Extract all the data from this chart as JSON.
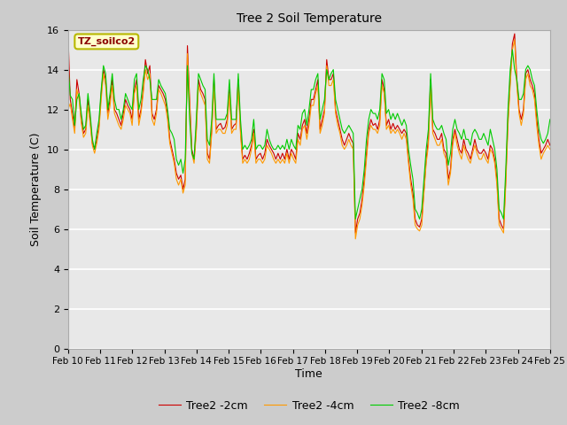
{
  "title": "Tree 2 Soil Temperature",
  "xlabel": "Time",
  "ylabel": "Soil Temperature (C)",
  "annotation": "TZ_soilco2",
  "ylim": [
    0,
    16
  ],
  "yticks": [
    0,
    2,
    4,
    6,
    8,
    10,
    12,
    14,
    16
  ],
  "x_labels": [
    "Feb 10",
    "Feb 11",
    "Feb 12",
    "Feb 13",
    "Feb 14",
    "Feb 15",
    "Feb 16",
    "Feb 17",
    "Feb 18",
    "Feb 19",
    "Feb 20",
    "Feb 21",
    "Feb 22",
    "Feb 23",
    "Feb 24",
    "Feb 25"
  ],
  "legend": [
    "Tree2 -2cm",
    "Tree2 -4cm",
    "Tree2 -8cm"
  ],
  "colors": [
    "#cc0000",
    "#ff9900",
    "#00cc00"
  ],
  "fig_bg": "#dddddd",
  "plot_bg": "#e8e8e8",
  "tree2_2cm": [
    15.8,
    12.5,
    11.8,
    11.0,
    13.5,
    12.8,
    11.5,
    10.8,
    11.0,
    12.5,
    11.5,
    10.3,
    10.0,
    10.5,
    11.2,
    12.8,
    14.0,
    13.5,
    11.8,
    12.5,
    13.5,
    12.0,
    11.8,
    11.5,
    11.2,
    11.8,
    12.5,
    12.2,
    12.0,
    11.5,
    13.0,
    13.5,
    11.5,
    12.0,
    13.0,
    14.5,
    13.8,
    14.2,
    11.8,
    11.5,
    12.0,
    13.2,
    13.0,
    12.8,
    12.5,
    11.8,
    10.5,
    10.0,
    9.5,
    8.8,
    8.5,
    8.7,
    8.0,
    8.5,
    15.2,
    12.5,
    10.0,
    9.5,
    11.0,
    13.5,
    13.0,
    12.8,
    12.5,
    9.8,
    9.5,
    11.0,
    13.5,
    11.0,
    11.2,
    11.3,
    11.0,
    11.1,
    11.5,
    13.0,
    11.0,
    11.2,
    11.3,
    13.5,
    11.0,
    9.5,
    9.7,
    9.5,
    9.8,
    10.2,
    11.0,
    9.5,
    9.7,
    9.8,
    9.5,
    9.8,
    10.5,
    10.2,
    10.0,
    9.8,
    9.5,
    9.8,
    9.5,
    9.8,
    9.5,
    10.0,
    9.5,
    10.0,
    9.8,
    9.5,
    10.8,
    10.5,
    11.2,
    11.5,
    10.8,
    11.5,
    12.5,
    12.5,
    13.0,
    13.5,
    11.0,
    11.5,
    12.0,
    14.5,
    13.5,
    13.5,
    13.8,
    12.0,
    11.5,
    11.0,
    10.5,
    10.2,
    10.5,
    10.8,
    10.5,
    10.3,
    5.8,
    6.5,
    6.8,
    7.5,
    8.5,
    9.8,
    11.0,
    11.5,
    11.2,
    11.3,
    11.0,
    11.5,
    13.5,
    13.0,
    11.2,
    11.5,
    11.0,
    11.3,
    11.0,
    11.2,
    11.0,
    10.8,
    11.0,
    10.8,
    9.5,
    8.5,
    7.8,
    6.5,
    6.2,
    6.1,
    6.5,
    8.0,
    9.5,
    10.5,
    13.5,
    11.0,
    10.8,
    10.5,
    10.5,
    10.8,
    10.0,
    9.8,
    8.5,
    9.0,
    10.5,
    11.0,
    10.5,
    10.0,
    9.8,
    10.5,
    10.0,
    9.8,
    9.5,
    10.0,
    10.5,
    10.0,
    9.8,
    9.8,
    10.0,
    9.8,
    9.5,
    10.2,
    10.0,
    9.5,
    8.5,
    6.5,
    6.2,
    6.0,
    8.5,
    11.5,
    13.5,
    15.3,
    15.8,
    13.5,
    12.0,
    11.5,
    12.0,
    13.8,
    14.0,
    13.5,
    13.2,
    12.8,
    11.5,
    10.5,
    9.8,
    10.0,
    10.2,
    10.5,
    10.2
  ],
  "tree2_4cm": [
    12.0,
    12.3,
    11.5,
    10.8,
    13.0,
    12.5,
    11.3,
    10.6,
    10.8,
    12.2,
    11.3,
    10.2,
    9.8,
    10.3,
    11.0,
    12.5,
    13.8,
    13.2,
    11.5,
    12.2,
    13.2,
    11.8,
    11.5,
    11.2,
    11.0,
    11.5,
    12.2,
    12.0,
    11.8,
    11.2,
    12.8,
    13.2,
    11.2,
    11.8,
    12.8,
    14.0,
    13.5,
    13.8,
    11.5,
    11.2,
    11.8,
    13.0,
    12.8,
    12.5,
    12.2,
    11.5,
    10.3,
    9.8,
    9.3,
    8.5,
    8.2,
    8.5,
    7.8,
    8.2,
    14.8,
    12.2,
    9.8,
    9.3,
    10.8,
    13.2,
    12.8,
    12.5,
    12.2,
    9.5,
    9.3,
    10.8,
    13.2,
    10.8,
    11.0,
    11.0,
    10.8,
    10.8,
    11.2,
    12.8,
    10.8,
    11.0,
    11.0,
    13.2,
    10.8,
    9.3,
    9.5,
    9.3,
    9.5,
    10.0,
    10.8,
    9.3,
    9.5,
    9.5,
    9.3,
    9.5,
    10.2,
    10.0,
    9.8,
    9.5,
    9.3,
    9.5,
    9.3,
    9.5,
    9.3,
    9.8,
    9.3,
    9.8,
    9.5,
    9.3,
    10.5,
    10.2,
    11.0,
    11.2,
    10.5,
    11.2,
    12.2,
    12.2,
    12.8,
    13.2,
    10.8,
    11.2,
    11.8,
    14.2,
    13.2,
    13.2,
    13.5,
    11.8,
    11.2,
    10.8,
    10.2,
    10.0,
    10.2,
    10.5,
    10.2,
    10.0,
    5.5,
    6.2,
    6.5,
    7.2,
    8.2,
    9.5,
    10.8,
    11.2,
    11.0,
    11.0,
    10.8,
    11.2,
    13.2,
    12.8,
    11.0,
    11.2,
    10.8,
    11.0,
    10.8,
    11.0,
    10.8,
    10.5,
    10.8,
    10.5,
    9.3,
    8.2,
    7.5,
    6.2,
    6.0,
    5.9,
    6.2,
    7.8,
    9.3,
    10.2,
    13.2,
    10.8,
    10.5,
    10.2,
    10.2,
    10.5,
    9.8,
    9.5,
    8.2,
    8.8,
    10.2,
    10.8,
    10.2,
    9.8,
    9.5,
    10.2,
    9.8,
    9.5,
    9.3,
    9.8,
    10.2,
    9.8,
    9.5,
    9.5,
    9.8,
    9.5,
    9.3,
    10.0,
    9.8,
    9.3,
    8.2,
    6.2,
    6.0,
    5.8,
    8.2,
    11.2,
    13.2,
    15.0,
    15.5,
    13.2,
    11.8,
    11.2,
    11.8,
    13.5,
    13.8,
    13.2,
    13.0,
    12.5,
    11.2,
    10.2,
    9.5,
    9.8,
    10.0,
    10.2,
    10.0
  ],
  "tree2_8cm": [
    14.2,
    12.7,
    12.5,
    11.2,
    12.5,
    12.8,
    11.8,
    11.0,
    11.2,
    12.8,
    11.8,
    10.5,
    10.0,
    10.8,
    11.5,
    13.0,
    14.2,
    13.8,
    12.0,
    12.8,
    13.8,
    12.5,
    12.0,
    12.0,
    11.5,
    12.0,
    12.8,
    12.5,
    12.2,
    12.0,
    13.5,
    13.8,
    12.0,
    12.5,
    13.5,
    14.2,
    14.0,
    13.5,
    12.5,
    12.5,
    12.5,
    13.5,
    13.2,
    13.0,
    12.8,
    12.0,
    11.0,
    10.8,
    10.5,
    9.5,
    9.2,
    9.5,
    8.8,
    9.5,
    14.2,
    11.5,
    9.8,
    9.5,
    11.5,
    13.8,
    13.5,
    13.2,
    13.0,
    10.5,
    10.2,
    11.5,
    13.8,
    11.5,
    11.5,
    11.5,
    11.5,
    11.5,
    11.8,
    13.5,
    11.5,
    11.5,
    11.5,
    13.8,
    11.5,
    10.0,
    10.2,
    10.0,
    10.2,
    10.5,
    11.5,
    10.0,
    10.2,
    10.2,
    10.0,
    10.2,
    11.0,
    10.5,
    10.2,
    10.0,
    10.0,
    10.2,
    10.0,
    10.2,
    10.0,
    10.5,
    10.0,
    10.5,
    10.2,
    10.0,
    11.2,
    11.0,
    11.8,
    12.0,
    11.2,
    12.0,
    13.0,
    13.0,
    13.5,
    13.8,
    11.5,
    12.0,
    12.5,
    14.0,
    13.5,
    13.8,
    14.0,
    12.5,
    12.0,
    11.5,
    11.0,
    10.8,
    11.0,
    11.2,
    11.0,
    10.8,
    6.5,
    7.0,
    7.5,
    8.0,
    9.0,
    10.5,
    11.5,
    12.0,
    11.8,
    11.8,
    11.5,
    12.0,
    13.8,
    13.5,
    11.8,
    12.0,
    11.5,
    11.8,
    11.5,
    11.8,
    11.5,
    11.2,
    11.5,
    11.2,
    10.0,
    9.2,
    8.5,
    7.0,
    6.8,
    6.5,
    7.0,
    8.5,
    10.0,
    11.0,
    13.8,
    11.5,
    11.2,
    11.0,
    11.0,
    11.2,
    10.8,
    10.5,
    9.2,
    9.8,
    11.0,
    11.5,
    11.0,
    10.8,
    10.5,
    11.0,
    10.5,
    10.5,
    10.2,
    10.8,
    11.0,
    10.8,
    10.5,
    10.5,
    10.8,
    10.5,
    10.2,
    11.0,
    10.5,
    10.0,
    9.0,
    7.0,
    6.8,
    6.5,
    9.0,
    12.0,
    14.0,
    15.0,
    14.0,
    13.5,
    12.5,
    12.5,
    12.8,
    14.0,
    14.2,
    14.0,
    13.5,
    13.2,
    12.0,
    11.0,
    10.5,
    10.3,
    10.5,
    10.8,
    11.5
  ]
}
